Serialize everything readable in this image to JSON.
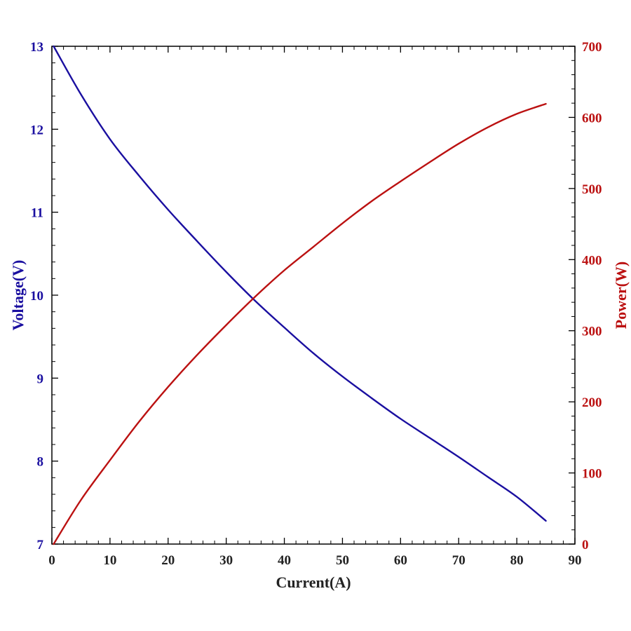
{
  "colors": {
    "voltage": "#1a0fa0",
    "power": "#bb1111",
    "axis": "#000000",
    "background": "#ffffff"
  },
  "chart_data": {
    "type": "line",
    "title": "",
    "xlabel": "Current(A)",
    "ylabel_left": "Voltage(V)",
    "ylabel_right": "Power(W)",
    "xlim": [
      0,
      90
    ],
    "ylim_left": [
      7,
      13
    ],
    "ylim_right": [
      0,
      700
    ],
    "x_ticks": [
      "0",
      "10",
      "20",
      "30",
      "40",
      "50",
      "60",
      "70",
      "80",
      "90"
    ],
    "y_left_ticks": [
      "7",
      "8",
      "9",
      "10",
      "11",
      "12",
      "13"
    ],
    "y_right_ticks": [
      "0",
      "100",
      "200",
      "300",
      "400",
      "500",
      "600",
      "700"
    ],
    "grid": false,
    "series": [
      {
        "name": "Voltage(V)",
        "axis": "left",
        "x": [
          0.3,
          5,
          10,
          15,
          20,
          25,
          30,
          35,
          40,
          45,
          50,
          55,
          60,
          65,
          70,
          75,
          80,
          85
        ],
        "values": [
          13.0,
          12.42,
          11.88,
          11.44,
          11.03,
          10.65,
          10.28,
          9.93,
          9.61,
          9.3,
          9.02,
          8.76,
          8.51,
          8.28,
          8.05,
          7.81,
          7.57,
          7.28
        ]
      },
      {
        "name": "Power(W)",
        "axis": "right",
        "x": [
          0.3,
          5,
          10,
          15,
          20,
          25,
          30,
          35,
          40,
          45,
          50,
          55,
          60,
          65,
          70,
          75,
          80,
          85
        ],
        "values": [
          0,
          62,
          118,
          172,
          221,
          266,
          308,
          348,
          385,
          418,
          451,
          482,
          510,
          537,
          563,
          586,
          605,
          619
        ]
      }
    ]
  }
}
